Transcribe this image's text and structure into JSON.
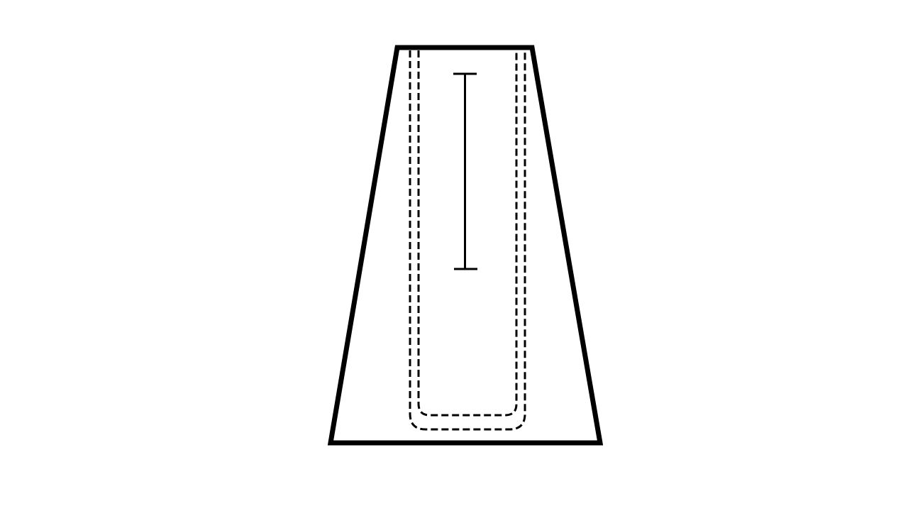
{
  "diagram": {
    "kind": "technical-drawing",
    "background": "#ffffff",
    "stroke_color": "#000000",
    "elements": [
      {
        "name": "trapezoid-outline",
        "style": "solid"
      },
      {
        "name": "outer-dashed-pocket-outline",
        "style": "dashed"
      },
      {
        "name": "inner-dashed-pocket-outline",
        "style": "dashed"
      },
      {
        "name": "dimension-line",
        "style": "solid",
        "caps": "T-bar"
      }
    ]
  }
}
